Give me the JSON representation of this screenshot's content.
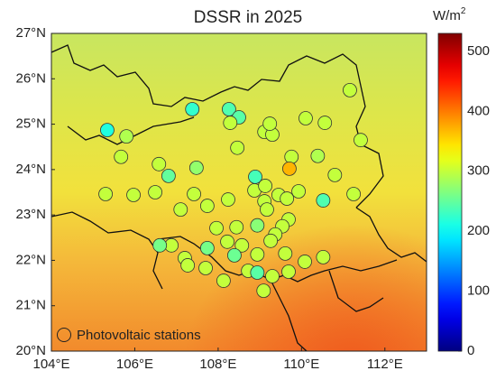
{
  "chart_data": {
    "type": "scatter",
    "title": "DSSR in 2025",
    "xlim": [
      104,
      113
    ],
    "ylim": [
      20,
      27
    ],
    "xticks": [
      {
        "value": 104,
        "label": "104°E"
      },
      {
        "value": 106,
        "label": "106°E"
      },
      {
        "value": 108,
        "label": "108°E"
      },
      {
        "value": 110,
        "label": "110°E"
      },
      {
        "value": 112,
        "label": "112°E"
      }
    ],
    "yticks": [
      {
        "value": 20,
        "label": "20°N"
      },
      {
        "value": 21,
        "label": "21°N"
      },
      {
        "value": 22,
        "label": "22°N"
      },
      {
        "value": 23,
        "label": "23°N"
      },
      {
        "value": 24,
        "label": "24°N"
      },
      {
        "value": 25,
        "label": "25°N"
      },
      {
        "value": 26,
        "label": "26°N"
      },
      {
        "value": 27,
        "label": "27°N"
      }
    ],
    "colormap": "jet",
    "clim": [
      0,
      530
    ],
    "colorbar_ticks": [
      0,
      100,
      200,
      300,
      400,
      500
    ],
    "colorbar_label": "W/m",
    "colorbar_label_sup": "2",
    "legend_loc": "lower left",
    "series": [
      {
        "name": "Photovoltaic stations",
        "x": [
          105.34,
          107.38,
          108.26,
          108.5,
          108.29,
          105.8,
          105.67,
          105.3,
          105.97,
          106.81,
          107.48,
          106.49,
          107.42,
          107.74,
          107.1,
          108.24,
          108.87,
          108.46,
          109.11,
          109.3,
          109.24,
          110.1,
          110.56,
          111.42,
          111.16,
          109.76,
          109.71,
          110.39,
          110.8,
          110.52,
          111.25,
          108.89,
          109.13,
          109.11,
          109.45,
          109.65,
          109.69,
          109.54,
          109.93,
          109.17,
          108.94,
          109.37,
          108.44,
          107.96,
          107.74,
          107.2,
          106.88,
          107.27,
          108.22,
          108.57,
          108.94,
          109.26,
          109.61,
          109.3,
          109.69,
          110.08,
          110.52,
          108.72,
          108.13,
          108.94,
          108.39,
          107.7,
          109.09,
          106.58,
          106.6
        ],
        "y": [
          24.87,
          25.33,
          25.33,
          25.15,
          25.03,
          24.73,
          24.28,
          23.46,
          23.44,
          23.86,
          24.04,
          23.5,
          23.46,
          23.2,
          23.12,
          23.34,
          23.54,
          24.48,
          24.83,
          24.77,
          25.01,
          25.13,
          25.03,
          24.65,
          25.75,
          24.28,
          24.02,
          24.3,
          23.88,
          23.32,
          23.46,
          23.84,
          23.64,
          23.3,
          23.44,
          23.36,
          22.9,
          22.75,
          23.52,
          23.12,
          22.77,
          22.57,
          22.73,
          22.71,
          22.27,
          22.05,
          22.33,
          21.89,
          22.41,
          22.33,
          22.13,
          22.43,
          22.15,
          21.65,
          21.75,
          21.97,
          22.07,
          21.77,
          21.55,
          21.73,
          22.11,
          21.83,
          21.33,
          24.12,
          22.33
        ],
        "values": [
          215,
          225,
          240,
          245,
          300,
          290,
          300,
          300,
          300,
          250,
          275,
          300,
          300,
          300,
          300,
          300,
          300,
          300,
          300,
          300,
          300,
          300,
          300,
          300,
          300,
          300,
          370,
          290,
          300,
          240,
          300,
          235,
          300,
          300,
          300,
          300,
          300,
          300,
          300,
          300,
          270,
          300,
          300,
          300,
          260,
          300,
          300,
          300,
          300,
          300,
          300,
          300,
          300,
          300,
          300,
          300,
          300,
          300,
          300,
          245,
          255,
          300,
          300,
          300,
          260
        ]
      }
    ]
  }
}
